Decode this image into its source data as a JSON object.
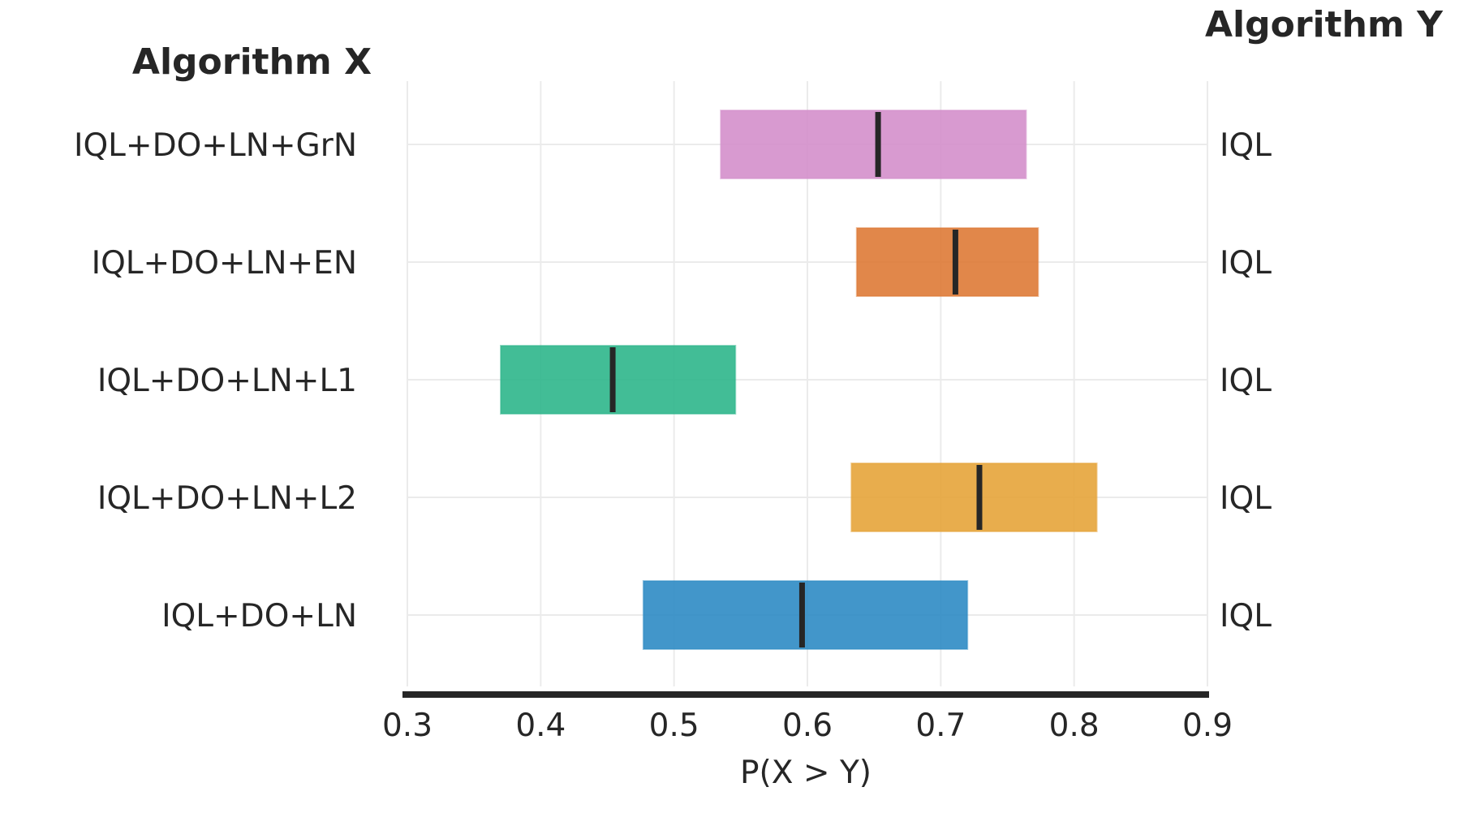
{
  "chart_data": {
    "type": "interval",
    "title": "",
    "left_header": "Algorithm X",
    "right_header": "Algorithm Y",
    "xlabel": "P(X > Y)",
    "xlim": [
      0.3,
      0.9
    ],
    "xticks": [
      "0.3",
      "0.4",
      "0.5",
      "0.6",
      "0.7",
      "0.8",
      "0.9"
    ],
    "grid": true,
    "rows": [
      {
        "algorithm_x": "IQL+DO+LN+GrN",
        "algorithm_y": "IQL",
        "low": 0.535,
        "high": 0.764,
        "median": 0.653,
        "color": "#d48fcb"
      },
      {
        "algorithm_x": "IQL+DO+LN+EN",
        "algorithm_y": "IQL",
        "low": 0.637,
        "high": 0.773,
        "median": 0.711,
        "color": "#de7a36"
      },
      {
        "algorithm_x": "IQL+DO+LN+L1",
        "algorithm_y": "IQL",
        "low": 0.37,
        "high": 0.546,
        "median": 0.454,
        "color": "#2db68b"
      },
      {
        "algorithm_x": "IQL+DO+LN+L2",
        "algorithm_y": "IQL",
        "low": 0.633,
        "high": 0.817,
        "median": 0.729,
        "color": "#e6a43a"
      },
      {
        "algorithm_x": "IQL+DO+LN",
        "algorithm_y": "IQL",
        "low": 0.477,
        "high": 0.72,
        "median": 0.596,
        "color": "#2e8bc4"
      }
    ]
  }
}
